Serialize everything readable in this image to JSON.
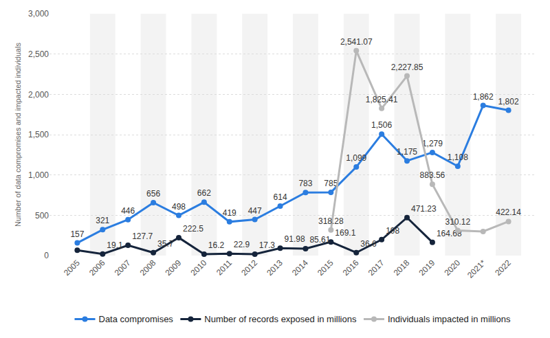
{
  "chart_data": {
    "type": "line",
    "y_label": "Number of data compromises and impacted individuals",
    "categories": [
      "2005",
      "2006",
      "2007",
      "2008",
      "2009",
      "2010",
      "2011",
      "2012",
      "2013",
      "2014",
      "2015",
      "2016",
      "2017",
      "2018",
      "2019",
      "2020",
      "2021*",
      "2022"
    ],
    "series": [
      {
        "name": "Data compromises",
        "color": "#2b7de0",
        "marker": "circle",
        "values": [
          157,
          321,
          446,
          656,
          498,
          662,
          419,
          447,
          614,
          783,
          785,
          1099,
          1506,
          1175,
          1279,
          1108,
          1862,
          1802
        ],
        "value_labels": [
          "157",
          "321",
          "446",
          "656",
          "498",
          "662",
          "419",
          "447",
          "614",
          "783",
          "785",
          "1,099",
          "1,506",
          "1,175",
          "1,279",
          "1,108",
          "1,862",
          "1,802"
        ]
      },
      {
        "name": "Number of records exposed in millions",
        "color": "#15243b",
        "marker": "circle",
        "values": [
          66.9,
          19.1,
          127.7,
          35.7,
          222.5,
          16.2,
          22.9,
          17.3,
          91.98,
          85.61,
          169.1,
          36.6,
          198,
          471.23,
          164.68,
          null,
          null,
          null
        ],
        "value_labels": [
          null,
          "19.1",
          "127.7",
          "35.7",
          "222.5",
          "16.2",
          "22.9",
          "17.3",
          "91.98",
          "85.61",
          "169.1",
          "36.6",
          "198",
          "471.23",
          "164.68",
          null,
          null,
          null
        ]
      },
      {
        "name": "Individuals impacted in millions",
        "color": "#b8b8b8",
        "marker": "circle",
        "values": [
          null,
          null,
          null,
          null,
          null,
          null,
          null,
          null,
          null,
          null,
          318.28,
          2541.07,
          1825.41,
          2227.85,
          883.56,
          310.12,
          298.22,
          422.14
        ],
        "value_labels": [
          null,
          null,
          null,
          null,
          null,
          null,
          null,
          null,
          null,
          null,
          "318.28",
          "2,541.07",
          "1,825.41",
          "2,227.85",
          "883.56",
          "310.12",
          null,
          "422.14"
        ]
      }
    ],
    "ylim": [
      0,
      3000
    ],
    "yticks": [
      0,
      500,
      {
        "value": 1000,
        "label": "1,000"
      },
      {
        "value": 1500,
        "label": "1,500"
      },
      {
        "value": 2000,
        "label": "2,000"
      },
      {
        "value": 2500,
        "label": "2,500"
      },
      {
        "value": 3000,
        "label": "3,000"
      }
    ],
    "grid": true,
    "legend": "bottom",
    "data_labels": true
  }
}
